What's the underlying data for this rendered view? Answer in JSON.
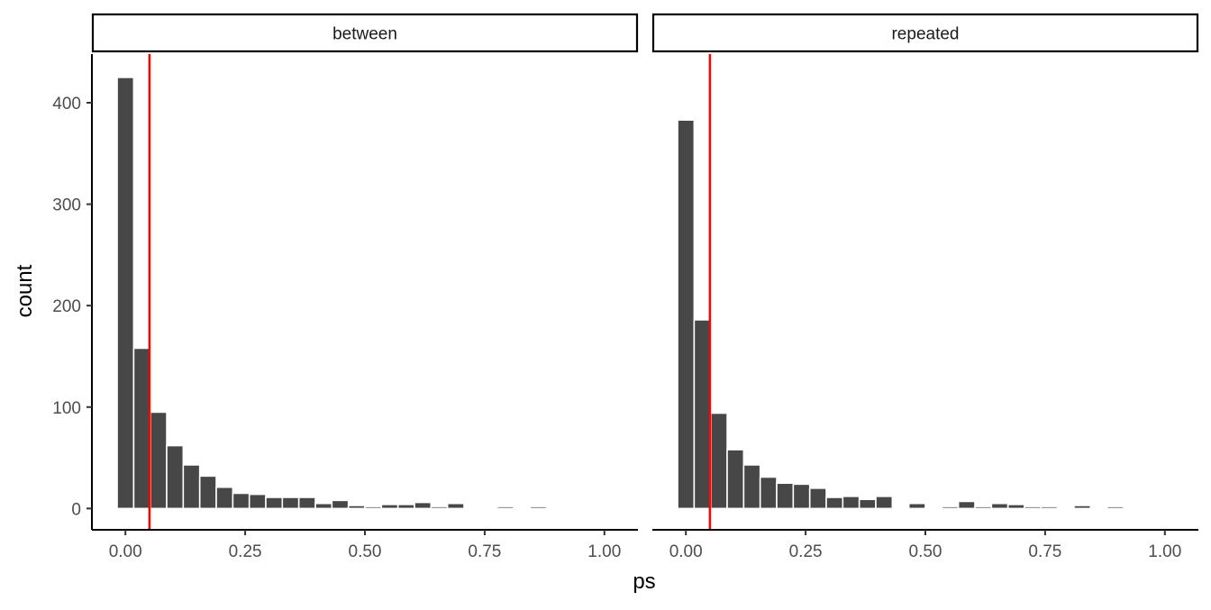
{
  "chart_data": {
    "type": "bar",
    "subtype": "faceted-histogram",
    "xlabel": "ps",
    "ylabel": "count",
    "xlim": [
      -0.07,
      1.07
    ],
    "ylim": [
      -21,
      448
    ],
    "x_ticks": [
      0.0,
      0.25,
      0.5,
      0.75,
      1.0
    ],
    "x_tick_labels": [
      "0.00",
      "0.25",
      "0.50",
      "0.75",
      "1.00"
    ],
    "y_ticks": [
      0,
      100,
      200,
      300,
      400
    ],
    "y_tick_labels": [
      "0",
      "100",
      "200",
      "300",
      "400"
    ],
    "bin_width": 0.0345,
    "bin_centers": [
      0.0,
      0.0345,
      0.069,
      0.1034,
      0.1379,
      0.1724,
      0.2069,
      0.2414,
      0.2759,
      0.3103,
      0.3448,
      0.3793,
      0.4138,
      0.4483,
      0.4828,
      0.5172,
      0.5517,
      0.5862,
      0.6207,
      0.6552,
      0.6897,
      0.7241,
      0.7586,
      0.7931,
      0.8276,
      0.8621,
      0.8966,
      0.931,
      0.9655,
      1.0
    ],
    "reference_line": {
      "x": 0.05,
      "color": "#ff0000"
    },
    "grid": false,
    "colors": {
      "bar": "#474747",
      "bar_edge": "#ffffff",
      "reference": "#ff0000",
      "axis": "#000000",
      "tick_label": "#4d4d4d"
    },
    "facets": [
      {
        "label": "between",
        "counts": [
          425,
          158,
          95,
          62,
          43,
          32,
          21,
          15,
          14,
          11,
          11,
          11,
          5,
          8,
          3,
          2,
          4,
          4,
          6,
          2,
          5,
          0,
          1,
          2,
          0,
          2,
          1,
          0,
          0,
          0
        ]
      },
      {
        "label": "repeated",
        "counts": [
          383,
          186,
          94,
          58,
          43,
          31,
          25,
          24,
          20,
          11,
          12,
          9,
          12,
          1,
          5,
          1,
          2,
          7,
          2,
          5,
          4,
          2,
          2,
          0,
          3,
          0,
          2,
          0,
          0,
          0
        ]
      }
    ]
  }
}
